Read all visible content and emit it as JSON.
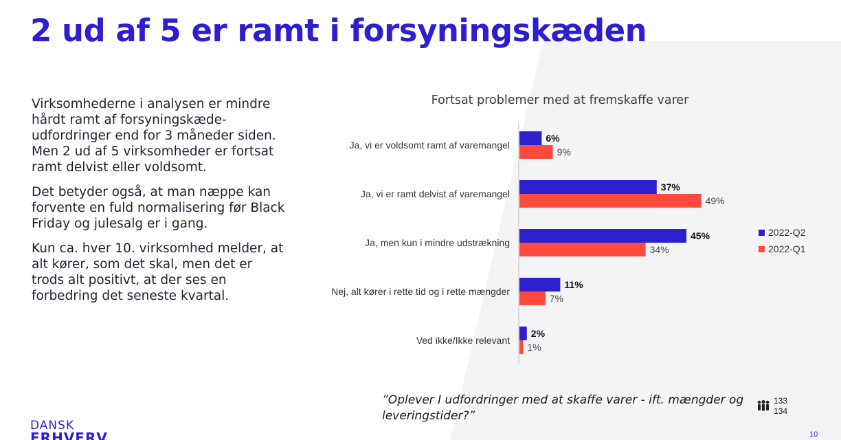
{
  "title": "2 ud af 5 er ramt i forsyningskæden",
  "paragraphs": [
    "Virksomhederne i analysen er mindre hårdt ramt af forsyningskæde-udfordringer end for 3 måneder siden. Men 2 ud af 5 virksomheder er fortsat ramt delvist eller voldsomt.",
    "Det betyder også, at man næppe kan forvente en fuld normalisering før Black Friday og julesalg er i gang.",
    "Kun ca. hver 10. virksomhed melder, at alt kører, som det skal, men det er trods alt positivt, at der ses en forbedring det seneste kvartal."
  ],
  "chart_data": {
    "type": "bar",
    "orientation": "horizontal",
    "title": "Fortsat problemer med at fremskaffe varer",
    "categories": [
      "Ja, vi er voldsomt ramt af varemangel",
      "Ja, vi er ramt delvist af varemangel",
      "Ja, men kun i mindre udstrækning",
      "Nej, alt kører i rette tid og i rette mængder",
      "Ved ikke/Ikke relevant"
    ],
    "series": [
      {
        "name": "2022-Q2",
        "values": [
          6,
          37,
          45,
          11,
          2
        ],
        "labels": [
          "6%",
          "37%",
          "45%",
          "11%",
          "2%"
        ],
        "color": "#2d1fd0"
      },
      {
        "name": "2022-Q1",
        "values": [
          9,
          49,
          34,
          7,
          1
        ],
        "labels": [
          "9%",
          "49%",
          "34%",
          "7%",
          "1%"
        ],
        "color": "#ff4a3d"
      }
    ],
    "xlim": [
      0,
      50
    ],
    "legend_position": "right",
    "grid": false
  },
  "footnote": "”Oplever I udfordringer med at skaffe varer - ift. mængder og leveringstider?”",
  "sample": {
    "icon": "people-icon",
    "n1": "133",
    "n2": "134"
  },
  "logo": {
    "line1": "DANSK",
    "line2": "ERHVERV"
  },
  "page_number": "10",
  "colors": {
    "accent": "#2d1fd0",
    "secondary": "#ff4a3d"
  }
}
